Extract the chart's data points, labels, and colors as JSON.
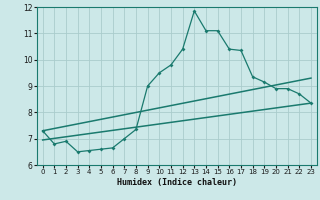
{
  "title": "",
  "xlabel": "Humidex (Indice chaleur)",
  "background_color": "#cce8e8",
  "grid_color": "#aacccc",
  "line_color": "#1a7a6e",
  "xlim": [
    -0.5,
    23.5
  ],
  "ylim": [
    6,
    12
  ],
  "xticks": [
    0,
    1,
    2,
    3,
    4,
    5,
    6,
    7,
    8,
    9,
    10,
    11,
    12,
    13,
    14,
    15,
    16,
    17,
    18,
    19,
    20,
    21,
    22,
    23
  ],
  "yticks": [
    6,
    7,
    8,
    9,
    10,
    11,
    12
  ],
  "series1_x": [
    0,
    1,
    2,
    3,
    4,
    5,
    6,
    7,
    8,
    9,
    10,
    11,
    12,
    13,
    14,
    15,
    16,
    17,
    18,
    19,
    20,
    21,
    22,
    23
  ],
  "series1_y": [
    7.3,
    6.8,
    6.9,
    6.5,
    6.55,
    6.6,
    6.65,
    7.0,
    7.35,
    9.0,
    9.5,
    9.8,
    10.4,
    11.85,
    11.1,
    11.1,
    10.4,
    10.35,
    9.35,
    9.15,
    8.9,
    8.9,
    8.7,
    8.35
  ],
  "series2_x": [
    0,
    23
  ],
  "series2_y": [
    7.3,
    9.3
  ],
  "series3_x": [
    0,
    23
  ],
  "series3_y": [
    6.95,
    8.35
  ]
}
